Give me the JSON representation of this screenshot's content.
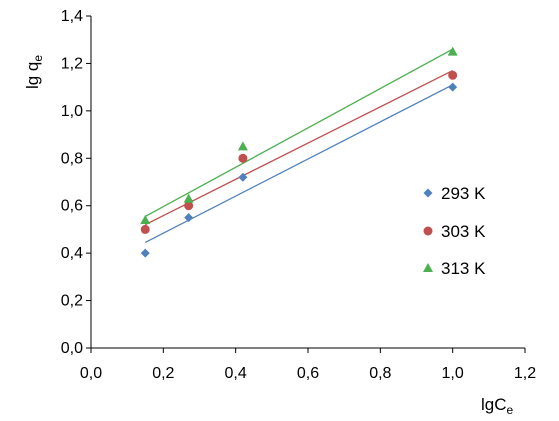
{
  "chart_data": {
    "type": "scatter",
    "xlabel": {
      "base": "lgC",
      "sub": "e"
    },
    "ylabel": {
      "base": "lg q",
      "sub": "e"
    },
    "xlim": [
      0,
      1.2
    ],
    "ylim": [
      0,
      1.4
    ],
    "xticks": [
      "0,0",
      "0,2",
      "0,4",
      "0,6",
      "0,8",
      "1,0",
      "1,2"
    ],
    "yticks": [
      "0,0",
      "0,2",
      "0,4",
      "0,6",
      "0,8",
      "1,0",
      "1,2",
      "1,4"
    ],
    "grid": false,
    "legend_position": "right",
    "series": [
      {
        "name": "293 K",
        "color": "#4f81bd",
        "marker": "diamond",
        "x": [
          0.15,
          0.27,
          0.42,
          1.0
        ],
        "y": [
          0.4,
          0.55,
          0.72,
          1.1
        ],
        "trendline": [
          [
            0.15,
            0.445
          ],
          [
            1.0,
            1.11
          ]
        ]
      },
      {
        "name": "303 K",
        "color": "#c0504d",
        "marker": "circle",
        "x": [
          0.15,
          0.27,
          0.42,
          1.0
        ],
        "y": [
          0.5,
          0.6,
          0.8,
          1.15
        ],
        "trendline": [
          [
            0.15,
            0.52
          ],
          [
            1.0,
            1.17
          ]
        ]
      },
      {
        "name": "313 K",
        "color": "#4caf50",
        "marker": "triangle",
        "x": [
          0.15,
          0.27,
          0.42,
          1.0
        ],
        "y": [
          0.54,
          0.63,
          0.85,
          1.25
        ],
        "trendline": [
          [
            0.15,
            0.555
          ],
          [
            1.0,
            1.26
          ]
        ]
      }
    ]
  }
}
